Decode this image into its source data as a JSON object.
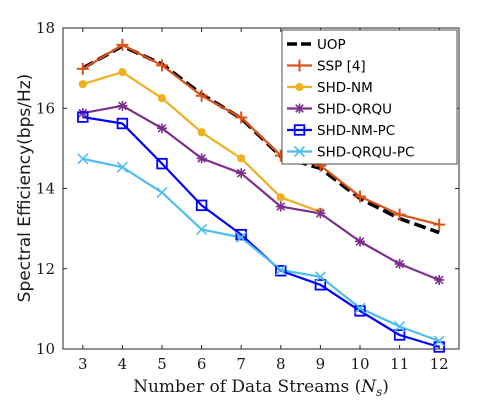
{
  "chart_data": {
    "type": "line",
    "title": "",
    "xlabel": "Number of Data Streams (",
    "xlabel_symbol": "N",
    "xlabel_subscript": "s",
    "xlabel_close": ")",
    "ylabel": "Spectral Efficiency(bps/Hz)",
    "x": [
      3,
      4,
      5,
      6,
      7,
      8,
      9,
      10,
      11,
      12
    ],
    "xlim": [
      2.5,
      12.5
    ],
    "ylim": [
      10,
      18
    ],
    "xticks": [
      "3",
      "4",
      "5",
      "6",
      "7",
      "8",
      "9",
      "10",
      "11",
      "12"
    ],
    "yticks": [
      "10",
      "12",
      "14",
      "16",
      "18"
    ],
    "grid": false,
    "legend_position": "top-right",
    "series": [
      {
        "name": "UOP",
        "color": "#000000",
        "marker": "none",
        "dashed": true,
        "values": [
          17.0,
          17.55,
          17.1,
          16.35,
          15.75,
          14.8,
          14.5,
          13.75,
          13.25,
          12.9
        ]
      },
      {
        "name": "SSP [4]",
        "color": "#d95319",
        "marker": "plus",
        "values": [
          16.98,
          17.58,
          17.07,
          16.31,
          15.77,
          14.82,
          14.57,
          13.8,
          13.35,
          13.1
        ]
      },
      {
        "name": "SHD-NM",
        "color": "#edb120",
        "marker": "circle",
        "values": [
          16.6,
          16.9,
          16.25,
          15.4,
          14.75,
          13.78,
          13.42,
          null,
          null,
          null
        ]
      },
      {
        "name": "SHD-QRQU",
        "color": "#7e2f8e",
        "marker": "asterisk",
        "values": [
          15.88,
          16.06,
          15.5,
          14.75,
          14.38,
          13.55,
          13.38,
          12.68,
          12.12,
          11.72
        ]
      },
      {
        "name": "SHD-NM-PC",
        "color": "#0000ff",
        "marker": "square",
        "values": [
          15.78,
          15.62,
          14.62,
          13.58,
          12.85,
          11.95,
          11.6,
          10.95,
          10.35,
          10.05
        ]
      },
      {
        "name": "SHD-QRQU-PC",
        "color": "#4dbeee",
        "marker": "x",
        "values": [
          14.74,
          14.53,
          13.9,
          12.98,
          12.78,
          11.97,
          11.8,
          11.02,
          10.56,
          10.2
        ]
      }
    ]
  }
}
